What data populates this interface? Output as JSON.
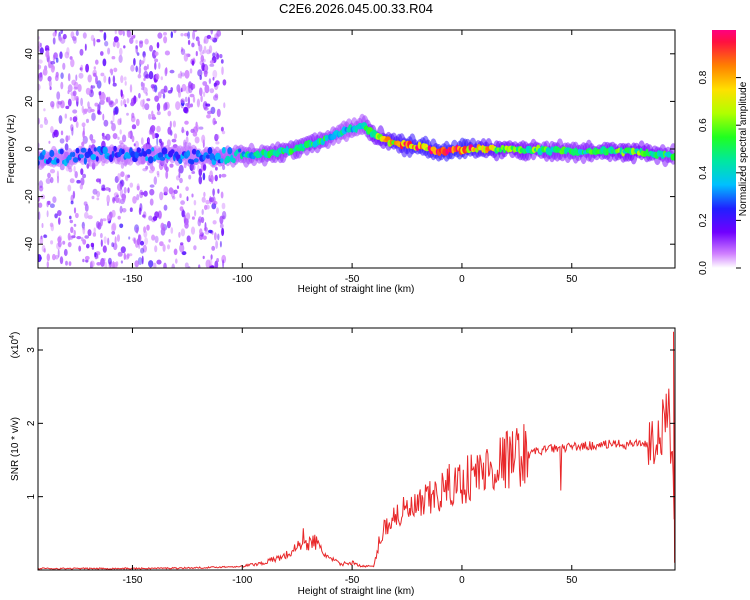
{
  "title": "C2E6.2026.045.00.33.R04",
  "colors": {
    "snr_line": "#e8282a",
    "ridge": [
      "#4020ff",
      "#00c8ff",
      "#30e070",
      "#ffe000",
      "#ff3030"
    ],
    "speckle": "#9a50ff"
  },
  "chart_data": [
    {
      "type": "heatmap",
      "xlabel": "Height of straight line (km)",
      "ylabel": "Frequency (Hz)",
      "xlim": [
        -193,
        97
      ],
      "ylim": [
        -50,
        50
      ],
      "xticks": [
        -150,
        -100,
        -50,
        0,
        50
      ],
      "yticks": [
        -40,
        -20,
        0,
        20,
        40
      ],
      "colorbar": {
        "label": "Normalized spectral amplitude",
        "range": [
          0.0,
          1.0
        ],
        "ticks": [
          "0.0",
          "0.2",
          "0.4",
          "0.6",
          "0.8"
        ]
      },
      "ridge": {
        "description_points_km_hz": [
          [
            -190,
            -4
          ],
          [
            -160,
            -2
          ],
          [
            -120,
            -3
          ],
          [
            -100,
            -3
          ],
          [
            -80,
            -1
          ],
          [
            -65,
            3
          ],
          [
            -55,
            7
          ],
          [
            -45,
            10
          ],
          [
            -40,
            6
          ],
          [
            -35,
            4
          ],
          [
            -30,
            2
          ],
          [
            -20,
            1
          ],
          [
            -10,
            -1
          ],
          [
            0,
            0
          ],
          [
            20,
            0
          ],
          [
            50,
            -1
          ],
          [
            80,
            -1
          ],
          [
            95,
            -3
          ]
        ],
        "amplitude": [
          0.3,
          0.3,
          0.3,
          0.4,
          0.5,
          0.5,
          0.4,
          0.4,
          0.6,
          0.7,
          0.8,
          0.9,
          0.9,
          0.95,
          0.6,
          0.5,
          0.6,
          0.5
        ]
      },
      "grid": false
    },
    {
      "type": "line",
      "xlabel": "Height of straight line (km)",
      "ylabel": "SNR (10 * v/v)",
      "yscale_label": "(x10",
      "yscale_exp": "4",
      "yscale_close": ")",
      "xlim": [
        -193,
        97
      ],
      "ylim": [
        0,
        3.3
      ],
      "xticks": [
        -150,
        -100,
        -50,
        0,
        50
      ],
      "yticks": [
        1,
        2,
        3
      ],
      "grid": false,
      "series": [
        {
          "x": [
            -193,
            -150,
            -120,
            -100,
            -90,
            -80,
            -75,
            -72,
            -70,
            -67,
            -65,
            -60,
            -55,
            -50,
            -45,
            -40,
            -38,
            -35,
            -30,
            -25,
            -20,
            -15,
            -10,
            -5,
            0,
            5,
            10,
            20,
            30,
            40,
            50,
            60,
            70,
            75,
            80,
            85,
            90,
            94,
            96,
            97
          ],
          "values": [
            0.02,
            0.02,
            0.03,
            0.05,
            0.1,
            0.2,
            0.3,
            0.45,
            0.35,
            0.4,
            0.3,
            0.15,
            0.08,
            0.1,
            0.05,
            0.05,
            0.35,
            0.6,
            0.75,
            0.8,
            0.85,
            0.95,
            1.05,
            1.15,
            1.2,
            1.3,
            1.35,
            1.5,
            1.6,
            1.65,
            1.68,
            1.7,
            1.72,
            1.7,
            1.75,
            1.7,
            1.8,
            2.2,
            1.5,
            0.2
          ]
        }
      ]
    }
  ]
}
